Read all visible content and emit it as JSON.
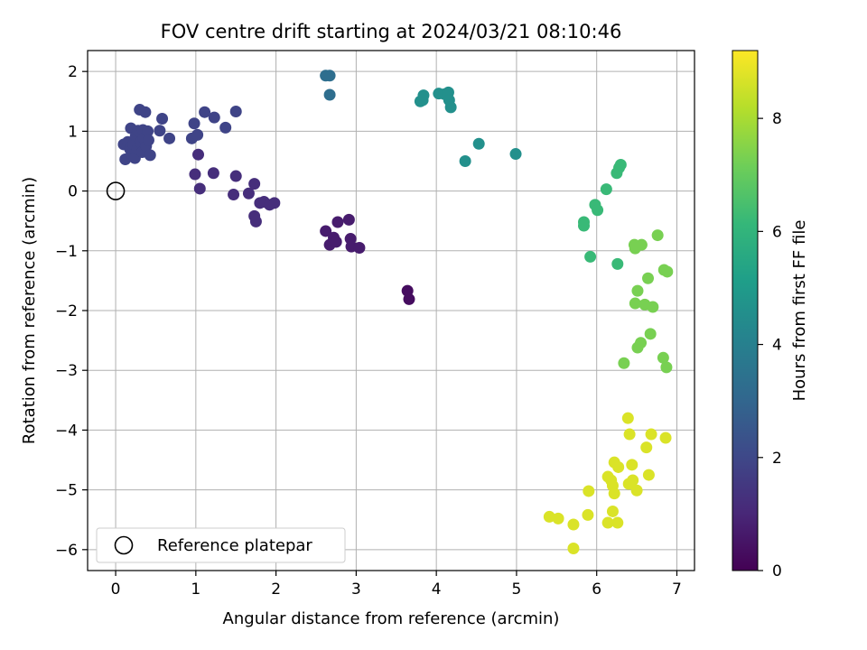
{
  "chart_data": {
    "type": "scatter",
    "title": "FOV centre drift starting at 2024/03/21 08:10:46",
    "xlabel": "Angular distance from reference (arcmin)",
    "ylabel": "Rotation from reference (arcmin)",
    "xlim": [
      -0.35,
      7.22
    ],
    "ylim": [
      -6.35,
      2.35
    ],
    "xticks": [
      "0",
      "1",
      "2",
      "3",
      "4",
      "5",
      "6",
      "7"
    ],
    "yticks": [
      "−6",
      "−5",
      "−4",
      "−3",
      "−2",
      "−1",
      "0",
      "1",
      "2"
    ],
    "xtick_values": [
      0,
      1,
      2,
      3,
      4,
      5,
      6,
      7
    ],
    "ytick_values": [
      -6,
      -5,
      -4,
      -3,
      -2,
      -1,
      0,
      1,
      2
    ],
    "grid": true,
    "legend": {
      "location": "lower-left",
      "entries": [
        "Reference platepar"
      ]
    },
    "reference_point": {
      "x": 0,
      "y": 0
    },
    "colorbar": {
      "label": "Hours from first FF file",
      "colormap": "viridis",
      "range": [
        0,
        9.2
      ],
      "ticks": [
        "0",
        "2",
        "4",
        "6",
        "8"
      ],
      "tick_values": [
        0,
        2,
        4,
        6,
        8
      ]
    },
    "points": [
      {
        "x": 3.64,
        "y": -1.67,
        "c": 0.3
      },
      {
        "x": 3.66,
        "y": -1.81,
        "c": 0.3
      },
      {
        "x": 2.62,
        "y": -0.67,
        "c": 0.7
      },
      {
        "x": 2.67,
        "y": -0.9,
        "c": 0.7
      },
      {
        "x": 2.72,
        "y": -0.78,
        "c": 0.7
      },
      {
        "x": 2.75,
        "y": -0.85,
        "c": 0.7
      },
      {
        "x": 2.77,
        "y": -0.52,
        "c": 0.7
      },
      {
        "x": 2.91,
        "y": -0.48,
        "c": 0.7
      },
      {
        "x": 2.93,
        "y": -0.8,
        "c": 0.7
      },
      {
        "x": 2.94,
        "y": -0.93,
        "c": 0.7
      },
      {
        "x": 3.04,
        "y": -0.95,
        "c": 0.7
      },
      {
        "x": 1.03,
        "y": 0.61,
        "c": 1.2
      },
      {
        "x": 0.99,
        "y": 0.28,
        "c": 1.2
      },
      {
        "x": 1.05,
        "y": 0.04,
        "c": 1.2
      },
      {
        "x": 1.22,
        "y": 0.3,
        "c": 1.2
      },
      {
        "x": 1.47,
        "y": -0.06,
        "c": 1.2
      },
      {
        "x": 1.5,
        "y": 0.25,
        "c": 1.2
      },
      {
        "x": 1.66,
        "y": -0.04,
        "c": 1.2
      },
      {
        "x": 1.73,
        "y": 0.12,
        "c": 1.2
      },
      {
        "x": 1.73,
        "y": -0.42,
        "c": 1.2
      },
      {
        "x": 1.75,
        "y": -0.51,
        "c": 1.2
      },
      {
        "x": 1.8,
        "y": -0.2,
        "c": 1.2
      },
      {
        "x": 1.85,
        "y": -0.18,
        "c": 1.2
      },
      {
        "x": 1.92,
        "y": -0.23,
        "c": 1.2
      },
      {
        "x": 1.98,
        "y": -0.2,
        "c": 1.2
      },
      {
        "x": 0.1,
        "y": 0.78,
        "c": 1.9
      },
      {
        "x": 0.12,
        "y": 0.53,
        "c": 1.9
      },
      {
        "x": 0.15,
        "y": 0.82,
        "c": 1.9
      },
      {
        "x": 0.18,
        "y": 0.7,
        "c": 1.9
      },
      {
        "x": 0.19,
        "y": 1.05,
        "c": 1.9
      },
      {
        "x": 0.2,
        "y": 0.62,
        "c": 1.9
      },
      {
        "x": 0.22,
        "y": 0.78,
        "c": 1.9
      },
      {
        "x": 0.24,
        "y": 0.55,
        "c": 1.9
      },
      {
        "x": 0.25,
        "y": 0.92,
        "c": 1.9
      },
      {
        "x": 0.27,
        "y": 0.7,
        "c": 1.9
      },
      {
        "x": 0.28,
        "y": 1.01,
        "c": 1.9
      },
      {
        "x": 0.3,
        "y": 1.36,
        "c": 1.9
      },
      {
        "x": 0.31,
        "y": 0.82,
        "c": 1.9
      },
      {
        "x": 0.33,
        "y": 0.65,
        "c": 1.9
      },
      {
        "x": 0.34,
        "y": 1.02,
        "c": 1.9
      },
      {
        "x": 0.35,
        "y": 0.88,
        "c": 1.9
      },
      {
        "x": 0.37,
        "y": 1.32,
        "c": 1.9
      },
      {
        "x": 0.38,
        "y": 0.75,
        "c": 1.9
      },
      {
        "x": 0.4,
        "y": 1.0,
        "c": 1.9
      },
      {
        "x": 0.41,
        "y": 0.85,
        "c": 1.9
      },
      {
        "x": 0.43,
        "y": 0.6,
        "c": 1.9
      },
      {
        "x": 0.55,
        "y": 1.01,
        "c": 1.9
      },
      {
        "x": 0.58,
        "y": 1.21,
        "c": 1.9
      },
      {
        "x": 0.67,
        "y": 0.88,
        "c": 1.9
      },
      {
        "x": 0.95,
        "y": 0.88,
        "c": 1.9
      },
      {
        "x": 0.98,
        "y": 1.13,
        "c": 1.9
      },
      {
        "x": 1.02,
        "y": 0.94,
        "c": 1.9
      },
      {
        "x": 1.11,
        "y": 1.32,
        "c": 1.9
      },
      {
        "x": 1.23,
        "y": 1.23,
        "c": 1.9
      },
      {
        "x": 1.37,
        "y": 1.06,
        "c": 1.9
      },
      {
        "x": 1.5,
        "y": 1.33,
        "c": 1.9
      },
      {
        "x": 2.62,
        "y": 1.93,
        "c": 3.3
      },
      {
        "x": 2.67,
        "y": 1.93,
        "c": 3.3
      },
      {
        "x": 2.67,
        "y": 1.61,
        "c": 3.3
      },
      {
        "x": 3.8,
        "y": 1.5,
        "c": 4.6
      },
      {
        "x": 3.83,
        "y": 1.52,
        "c": 4.6
      },
      {
        "x": 3.84,
        "y": 1.6,
        "c": 4.6
      },
      {
        "x": 4.03,
        "y": 1.63,
        "c": 4.6
      },
      {
        "x": 4.1,
        "y": 1.62,
        "c": 4.6
      },
      {
        "x": 4.15,
        "y": 1.65,
        "c": 4.6
      },
      {
        "x": 4.16,
        "y": 1.52,
        "c": 4.6
      },
      {
        "x": 4.18,
        "y": 1.4,
        "c": 4.6
      },
      {
        "x": 4.36,
        "y": 0.5,
        "c": 4.6
      },
      {
        "x": 4.53,
        "y": 0.79,
        "c": 4.6
      },
      {
        "x": 4.99,
        "y": 0.62,
        "c": 4.6
      },
      {
        "x": 5.84,
        "y": -0.52,
        "c": 6.2
      },
      {
        "x": 5.84,
        "y": -0.58,
        "c": 6.2
      },
      {
        "x": 5.92,
        "y": -1.1,
        "c": 6.2
      },
      {
        "x": 5.98,
        "y": -0.23,
        "c": 6.2
      },
      {
        "x": 6.01,
        "y": -0.32,
        "c": 6.2
      },
      {
        "x": 6.12,
        "y": 0.03,
        "c": 6.2
      },
      {
        "x": 6.25,
        "y": 0.3,
        "c": 6.2
      },
      {
        "x": 6.28,
        "y": 0.39,
        "c": 6.2
      },
      {
        "x": 6.3,
        "y": 0.44,
        "c": 6.2
      },
      {
        "x": 6.26,
        "y": -1.22,
        "c": 6.2
      },
      {
        "x": 6.34,
        "y": -2.88,
        "c": 7.3
      },
      {
        "x": 6.47,
        "y": -0.9,
        "c": 7.3
      },
      {
        "x": 6.48,
        "y": -0.96,
        "c": 7.3
      },
      {
        "x": 6.48,
        "y": -1.88,
        "c": 7.3
      },
      {
        "x": 6.51,
        "y": -1.67,
        "c": 7.3
      },
      {
        "x": 6.51,
        "y": -2.62,
        "c": 7.3
      },
      {
        "x": 6.55,
        "y": -2.54,
        "c": 7.3
      },
      {
        "x": 6.56,
        "y": -0.9,
        "c": 7.3
      },
      {
        "x": 6.6,
        "y": -1.9,
        "c": 7.3
      },
      {
        "x": 6.64,
        "y": -1.46,
        "c": 7.3
      },
      {
        "x": 6.67,
        "y": -2.39,
        "c": 7.3
      },
      {
        "x": 6.7,
        "y": -1.94,
        "c": 7.3
      },
      {
        "x": 6.76,
        "y": -0.74,
        "c": 7.3
      },
      {
        "x": 6.83,
        "y": -2.79,
        "c": 7.3
      },
      {
        "x": 6.84,
        "y": -1.32,
        "c": 7.3
      },
      {
        "x": 6.87,
        "y": -2.95,
        "c": 7.3
      },
      {
        "x": 6.88,
        "y": -1.35,
        "c": 7.3
      },
      {
        "x": 6.39,
        "y": -3.8,
        "c": 8.7
      },
      {
        "x": 6.41,
        "y": -4.07,
        "c": 8.7
      },
      {
        "x": 6.22,
        "y": -4.54,
        "c": 8.7
      },
      {
        "x": 6.27,
        "y": -4.62,
        "c": 8.7
      },
      {
        "x": 6.44,
        "y": -4.58,
        "c": 8.7
      },
      {
        "x": 6.62,
        "y": -4.29,
        "c": 8.7
      },
      {
        "x": 6.68,
        "y": -4.07,
        "c": 8.7
      },
      {
        "x": 6.86,
        "y": -4.13,
        "c": 8.7
      },
      {
        "x": 6.14,
        "y": -4.78,
        "c": 8.7
      },
      {
        "x": 6.18,
        "y": -4.84,
        "c": 8.7
      },
      {
        "x": 6.2,
        "y": -4.93,
        "c": 8.7
      },
      {
        "x": 6.22,
        "y": -5.06,
        "c": 8.7
      },
      {
        "x": 6.4,
        "y": -4.9,
        "c": 8.7
      },
      {
        "x": 6.45,
        "y": -4.84,
        "c": 8.7
      },
      {
        "x": 6.5,
        "y": -5.01,
        "c": 8.7
      },
      {
        "x": 6.65,
        "y": -4.75,
        "c": 8.7
      },
      {
        "x": 5.9,
        "y": -5.02,
        "c": 8.7
      },
      {
        "x": 6.2,
        "y": -5.36,
        "c": 8.7
      },
      {
        "x": 6.26,
        "y": -5.55,
        "c": 8.7
      },
      {
        "x": 6.14,
        "y": -5.55,
        "c": 8.7
      },
      {
        "x": 5.89,
        "y": -5.42,
        "c": 8.7
      },
      {
        "x": 5.41,
        "y": -5.45,
        "c": 8.7
      },
      {
        "x": 5.52,
        "y": -5.48,
        "c": 8.7
      },
      {
        "x": 5.71,
        "y": -5.58,
        "c": 8.7
      },
      {
        "x": 5.71,
        "y": -5.98,
        "c": 8.7
      }
    ]
  }
}
